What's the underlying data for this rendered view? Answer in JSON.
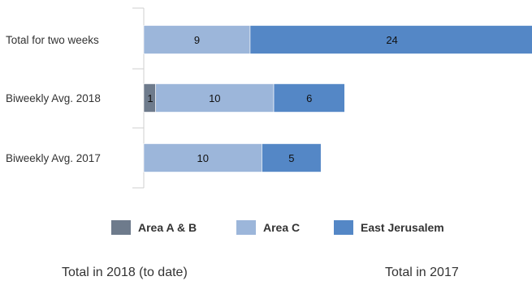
{
  "chart_data": {
    "type": "bar",
    "orientation": "horizontal",
    "stacked": true,
    "categories": [
      "Total for two weeks",
      "Biweekly Avg. 2018",
      "Biweekly Avg. 2017"
    ],
    "series": [
      {
        "name": "Area A & B",
        "color": "#6e7b8c",
        "values": [
          0,
          1,
          0
        ]
      },
      {
        "name": "Area C",
        "color": "#9cb6da",
        "values": [
          9,
          10,
          10
        ]
      },
      {
        "name": "East Jerusalem",
        "color": "#5487c6",
        "values": [
          24,
          6,
          5
        ]
      }
    ],
    "legend_position": "bottom",
    "grid": false
  },
  "footer": {
    "left": "Total in 2018 (to date)",
    "right": "Total in 2017"
  }
}
